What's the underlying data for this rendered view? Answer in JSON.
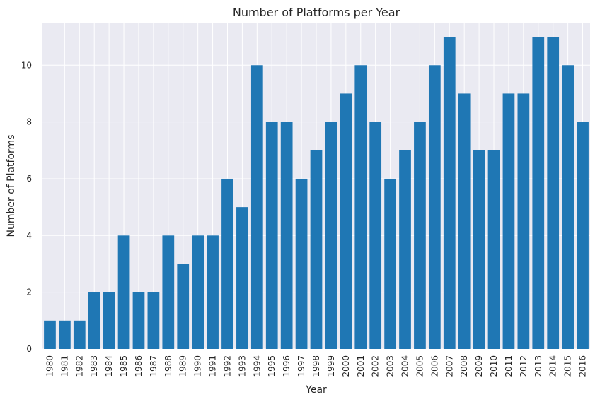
{
  "chart_data": {
    "type": "bar",
    "title": "Number of Platforms per Year",
    "xlabel": "Year",
    "ylabel": "Number of Platforms",
    "categories": [
      "1980",
      "1981",
      "1982",
      "1983",
      "1984",
      "1985",
      "1986",
      "1987",
      "1988",
      "1989",
      "1990",
      "1991",
      "1992",
      "1993",
      "1994",
      "1995",
      "1996",
      "1997",
      "1998",
      "1999",
      "2000",
      "2001",
      "2002",
      "2003",
      "2004",
      "2005",
      "2006",
      "2007",
      "2008",
      "2009",
      "2010",
      "2011",
      "2012",
      "2013",
      "2014",
      "2015",
      "2016"
    ],
    "values": [
      1,
      1,
      1,
      2,
      2,
      4,
      2,
      2,
      4,
      3,
      4,
      4,
      6,
      5,
      10,
      8,
      8,
      6,
      7,
      8,
      9,
      10,
      8,
      6,
      7,
      8,
      10,
      11,
      9,
      7,
      7,
      9,
      9,
      11,
      11,
      10,
      8
    ],
    "ylim": [
      0,
      11.5
    ],
    "yticks": [
      0,
      2,
      4,
      6,
      8,
      10
    ],
    "grid": true,
    "bar_color": "#1f77b4",
    "background_color": "#eaeaf2",
    "grid_color": "#ffffff"
  }
}
